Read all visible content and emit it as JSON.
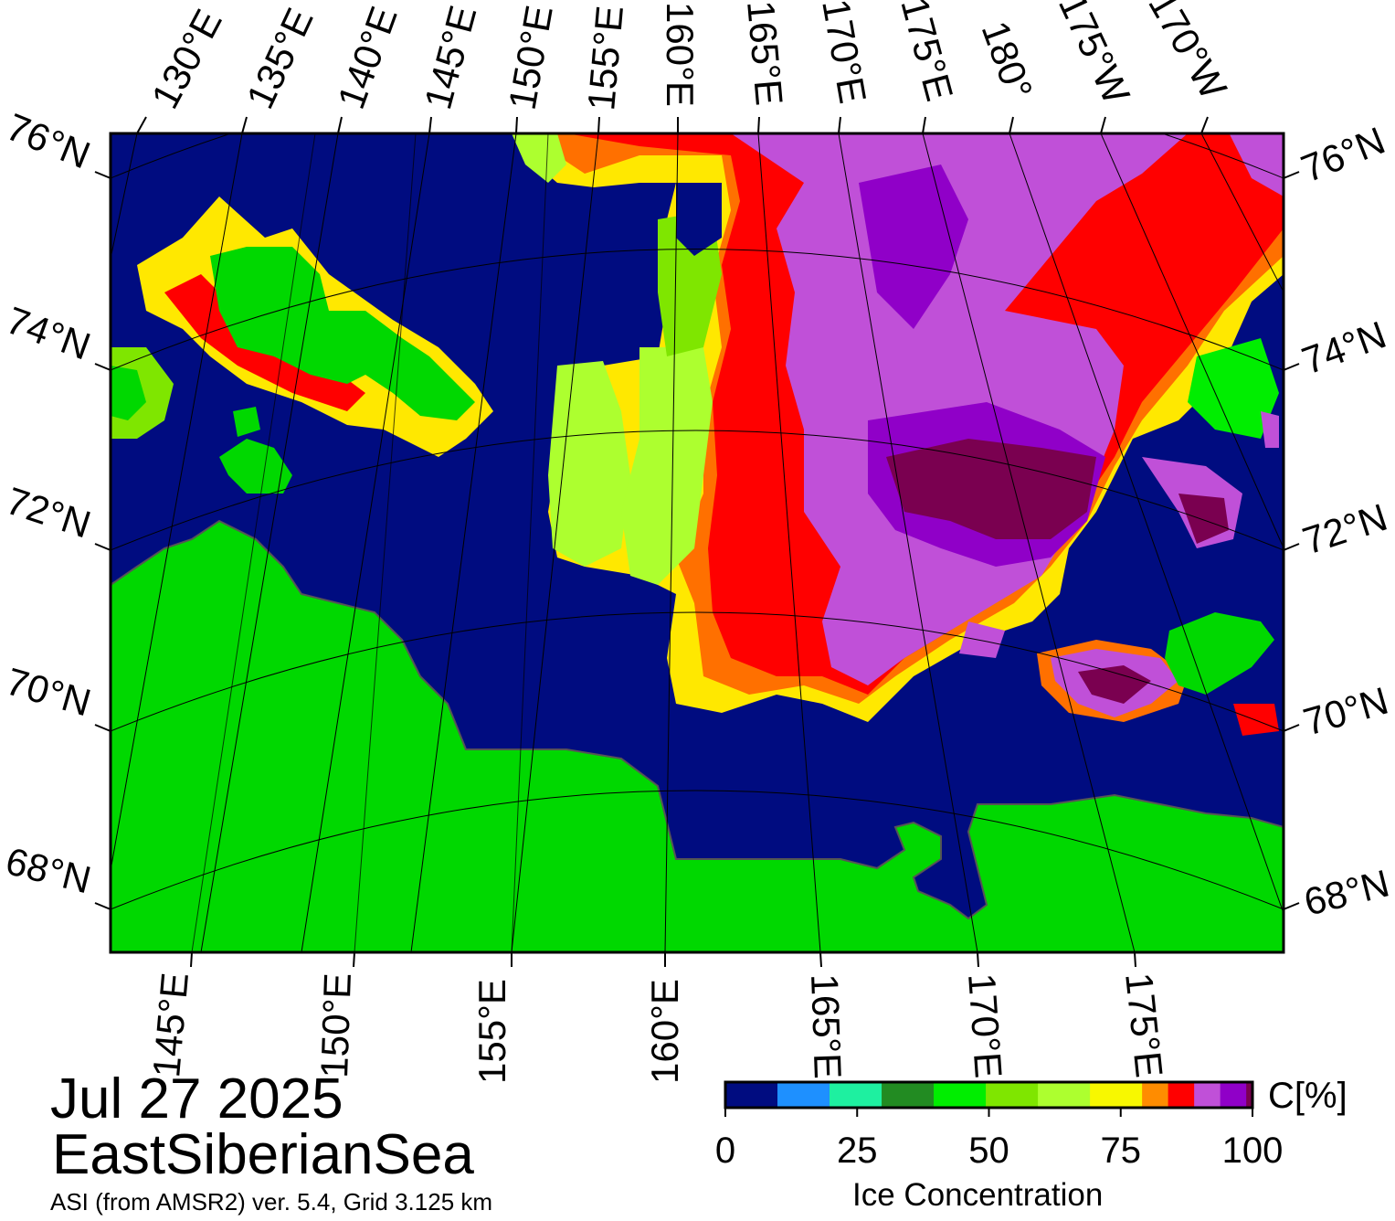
{
  "map": {
    "date": "Jul 27 2025",
    "region": "EastSiberianSea",
    "source": "ASI (from AMSR2) ver. 5.4,  Grid 3.125 km",
    "colors": {
      "ocean": "#000c80",
      "land": "#00d800",
      "frame": "#000000"
    },
    "top_longitude_labels": [
      "130°E",
      "135°E",
      "140°E",
      "145°E",
      "150°E",
      "155°E",
      "160°E",
      "165°E",
      "170°E",
      "175°E",
      "180°",
      "175°W",
      "170°W"
    ],
    "bottom_longitude_labels": [
      "145°E",
      "150°E",
      "155°E",
      "160°E",
      "165°E",
      "170°E",
      "175°E"
    ],
    "left_latitude_labels": [
      "76°N",
      "74°N",
      "72°N",
      "70°N",
      "68°N"
    ],
    "right_latitude_labels": [
      "76°N",
      "74°N",
      "72°N",
      "70°N",
      "68°N"
    ]
  },
  "colorbar": {
    "title": "Ice Concentration",
    "unit": "C[%]",
    "tick_labels": [
      "0",
      "25",
      "50",
      "75",
      "100"
    ],
    "bins": [
      {
        "range": "0-10",
        "color": "#000c80"
      },
      {
        "range": "10-20",
        "color": "#1e90ff"
      },
      {
        "range": "20-30",
        "color": "#1ef0a0"
      },
      {
        "range": "30-40",
        "color": "#228b22"
      },
      {
        "range": "40-50",
        "color": "#00ee00"
      },
      {
        "range": "50-60",
        "color": "#7fe600"
      },
      {
        "range": "60-70",
        "color": "#adff2f"
      },
      {
        "range": "70-80",
        "color": "#f8f800"
      },
      {
        "range": "80-85",
        "color": "#ff8c00"
      },
      {
        "range": "85-90",
        "color": "#ff0000"
      },
      {
        "range": "90-95",
        "color": "#c050d8"
      },
      {
        "range": "95-100",
        "color": "#9000c8"
      },
      {
        "range": "100",
        "color": "#7a0050"
      }
    ]
  }
}
